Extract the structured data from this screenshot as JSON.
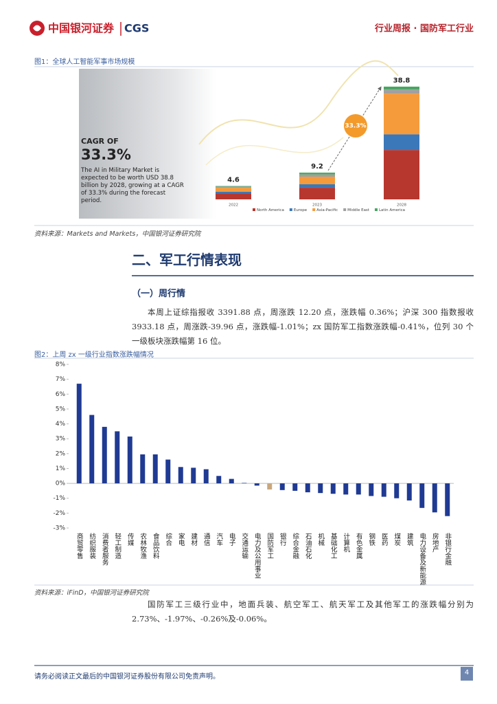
{
  "header": {
    "logo": "中国银河证券",
    "logo_en": "CGS",
    "report": "行业周报 · 国防军工行业"
  },
  "figures": [
    {
      "caption": "图1：全球人工智能军事市场规模",
      "source": "资料来源：Markets and Markets，中国银河证券研究院"
    },
    {
      "caption": "图2：上周 zx 一级行业指数涨跌幅情况",
      "source": "资料来源：iFinD，中国银河证券研究院"
    }
  ],
  "chart_data": [
    {
      "type": "stacked_bar",
      "categories": [
        "2022",
        "2023",
        "2028"
      ],
      "series": [
        {
          "name": "North America",
          "color": "#b7372f",
          "values": [
            2.0,
            4.0,
            17
          ]
        },
        {
          "name": "Europe",
          "color": "#3b78b9",
          "values": [
            0.6,
            1.2,
            5.4
          ]
        },
        {
          "name": "Asia-Pacific",
          "color": "#f59b3c",
          "values": [
            1.4,
            2.6,
            14
          ]
        },
        {
          "name": "Middle East",
          "color": "#a0a0a0",
          "values": [
            0.4,
            0.8,
            1.4
          ]
        },
        {
          "name": "Latin America",
          "color": "#4aa564",
          "values": [
            0.2,
            0.6,
            1.0
          ]
        }
      ],
      "totals": [
        4.6,
        9.2,
        38.8
      ],
      "cagr_label": "CAGR OF",
      "cagr": "33.3%",
      "description": "The AI in Military Market is expected to be worth USD 38.8 billion by 2028, growing at a CAGR of 33.3% during the forecast period.",
      "growth_label": "33.3%"
    },
    {
      "type": "bar",
      "categories": [
        "商贸零售",
        "纺织服装",
        "消费者服务",
        "轻工制造",
        "传媒",
        "农林牧渔",
        "食品饮料",
        "综合",
        "家电",
        "建材",
        "通信",
        "汽车",
        "电子",
        "交通运输",
        "电力及公用事业",
        "国防军工",
        "银行",
        "综合金融",
        "石油石化",
        "机械",
        "基础化工",
        "计算机",
        "有色金属",
        "钢铁",
        "医药",
        "煤炭",
        "建筑",
        "电力设备及新能源",
        "房地产",
        "非银行金融"
      ],
      "values": [
        6.7,
        4.6,
        3.8,
        3.5,
        3.15,
        1.95,
        1.95,
        1.6,
        1.1,
        1.05,
        0.95,
        0.5,
        0.3,
        0.03,
        -0.15,
        -0.41,
        -0.45,
        -0.5,
        -0.6,
        -0.65,
        -0.7,
        -0.75,
        -0.75,
        -0.85,
        -0.9,
        -1.0,
        -1.15,
        -1.65,
        -1.95,
        -2.2
      ],
      "color": "#1f3a93",
      "highlight_category": "国防军工",
      "highlight_color": "#c9a77c",
      "ylim": [
        -3,
        8
      ],
      "yticks": [
        {
          "value": -3,
          "label": "-3%"
        },
        {
          "value": -2,
          "label": "-2%"
        },
        {
          "value": -1,
          "label": "-1%"
        },
        {
          "value": 0,
          "label": "0%"
        },
        {
          "value": 1,
          "label": "1%"
        },
        {
          "value": 2,
          "label": "2%"
        },
        {
          "value": 3,
          "label": "3%"
        },
        {
          "value": 4,
          "label": "4%"
        },
        {
          "value": 5,
          "label": "5%"
        },
        {
          "value": 6,
          "label": "6%"
        },
        {
          "value": 7,
          "label": "7%"
        },
        {
          "value": 8,
          "label": "8%"
        }
      ]
    }
  ],
  "section": {
    "title": "二、军工行情表现",
    "subtitle": "（一）周行情"
  },
  "paragraphs": [
    "本周上证综指报收 3391.88 点，周涨跌 12.20 点，涨跌幅 0.36%；沪深 300 指数报收 3933.18 点，周涨跌-39.96 点，涨跌幅-1.01%；zx 国防军工指数涨跌幅-0.41%，位列 30 个一级板块涨跌幅第 16 位。",
    "国防军工三级行业中，地面兵装、航空军工、航天军工及其他军工的涨跌幅分别为 2.73%、-1.97%、-0.26%及-0.06%。"
  ],
  "footer": {
    "disclaimer": "请务必阅读正文最后的中国银河证券股份有限公司免责声明。",
    "page": 4
  }
}
